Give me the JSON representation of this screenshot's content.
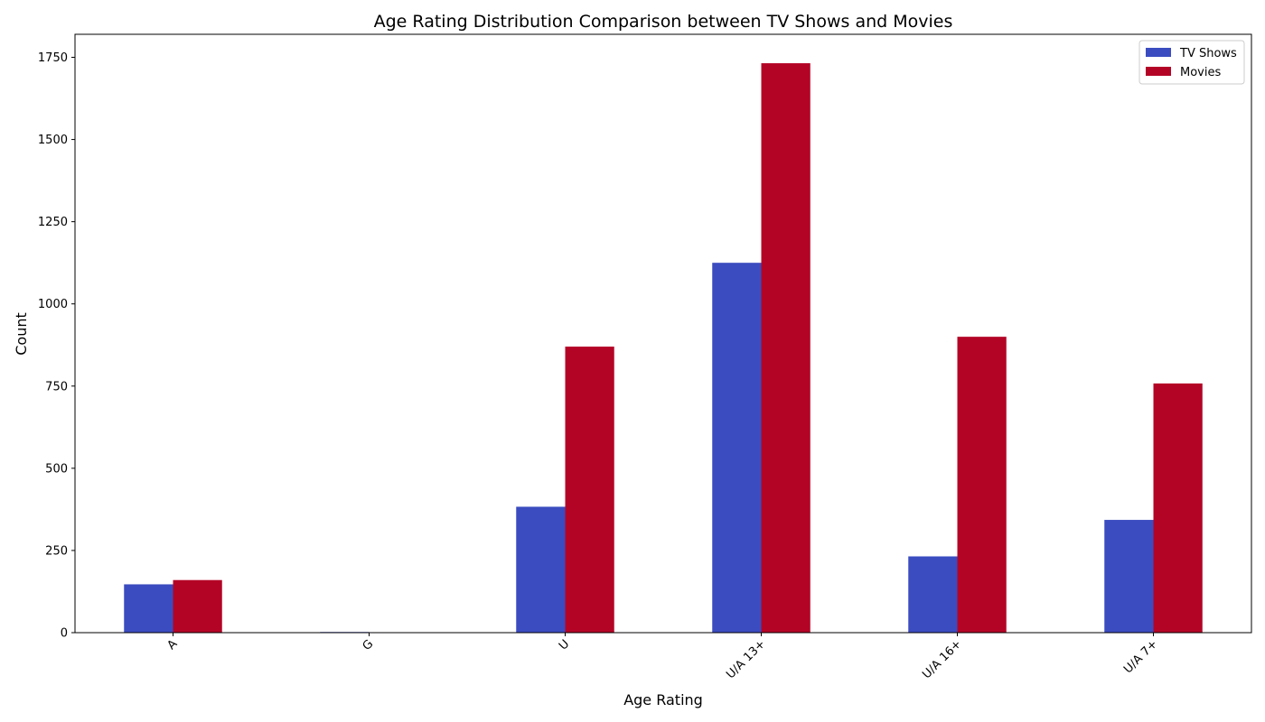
{
  "chart_data": {
    "type": "bar",
    "title": "Age Rating Distribution Comparison between TV Shows and Movies",
    "xlabel": "Age Rating",
    "ylabel": "Count",
    "categories": [
      "A",
      "G",
      "U",
      "U/A 13+",
      "U/A 16+",
      "U/A 7+"
    ],
    "series": [
      {
        "name": "TV Shows",
        "color": "#3b4cc0",
        "values": [
          147,
          2,
          383,
          1125,
          232,
          343
        ]
      },
      {
        "name": "Movies",
        "color": "#b40426",
        "values": [
          160,
          0,
          870,
          1732,
          900,
          758
        ]
      }
    ],
    "ylim": [
      0,
      1820
    ],
    "yticks": [
      0,
      250,
      500,
      750,
      1000,
      1250,
      1500,
      1750
    ],
    "grid": false,
    "legend_position": "top-right"
  }
}
